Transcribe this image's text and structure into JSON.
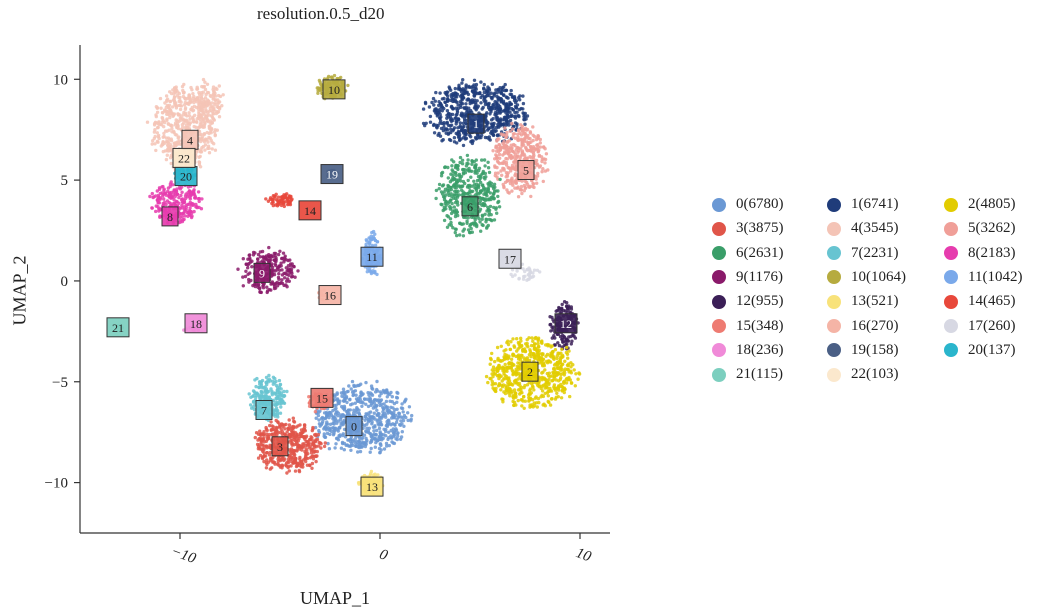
{
  "chart_data": {
    "type": "scatter",
    "title": "resolution.0.5_d20",
    "xlabel": "UMAP_1",
    "ylabel": "UMAP_2",
    "xlim": [
      -15,
      11.5
    ],
    "ylim": [
      -12.5,
      11.7
    ],
    "xticks": [
      -10,
      0,
      10
    ],
    "xtick_labels": [
      "−10",
      "0",
      "10"
    ],
    "yticks": [
      10,
      5,
      0,
      -5,
      -10
    ],
    "ytick_labels": [
      "10",
      "5",
      "0",
      "−5",
      "−10"
    ],
    "grid": false,
    "legend_position": "right",
    "clusters": [
      {
        "id": "0",
        "count": 6780,
        "legend": "0(6780)",
        "color": "#6a98d4",
        "label_pos": [
          -1.3,
          -7.2
        ]
      },
      {
        "id": "1",
        "count": 6741,
        "legend": "1(6741)",
        "color": "#1f3c7a",
        "label_pos": [
          4.8,
          7.8
        ]
      },
      {
        "id": "2",
        "count": 4805,
        "legend": "2(4805)",
        "color": "#e2cc00",
        "label_pos": [
          7.5,
          -4.5
        ]
      },
      {
        "id": "3",
        "count": 3875,
        "legend": "3(3875)",
        "color": "#e05549",
        "label_pos": [
          -5.0,
          -8.2
        ]
      },
      {
        "id": "4",
        "count": 3545,
        "legend": "4(3545)",
        "color": "#f4c4b6",
        "label_pos": [
          -9.5,
          7.0
        ]
      },
      {
        "id": "5",
        "count": 3262,
        "legend": "5(3262)",
        "color": "#f09f98",
        "label_pos": [
          7.3,
          5.5
        ]
      },
      {
        "id": "6",
        "count": 2631,
        "legend": "6(2631)",
        "color": "#3a9e69",
        "label_pos": [
          4.5,
          3.7
        ]
      },
      {
        "id": "7",
        "count": 2231,
        "legend": "7(2231)",
        "color": "#67c4d1",
        "label_pos": [
          -5.8,
          -6.4
        ]
      },
      {
        "id": "8",
        "count": 2183,
        "legend": "8(2183)",
        "color": "#e63cae",
        "label_pos": [
          -10.5,
          3.2
        ]
      },
      {
        "id": "9",
        "count": 1176,
        "legend": "9(1176)",
        "color": "#8a1a6a",
        "label_pos": [
          -5.9,
          0.4
        ]
      },
      {
        "id": "10",
        "count": 1064,
        "legend": "10(1064)",
        "color": "#b6ab3f",
        "label_pos": [
          -2.3,
          9.5
        ]
      },
      {
        "id": "11",
        "count": 1042,
        "legend": "11(1042)",
        "color": "#7aa9ea",
        "label_pos": [
          -0.4,
          1.2
        ]
      },
      {
        "id": "12",
        "count": 955,
        "legend": "12(955)",
        "color": "#3b1f57",
        "label_pos": [
          9.3,
          -2.1
        ]
      },
      {
        "id": "13",
        "count": 521,
        "legend": "13(521)",
        "color": "#f8e27a",
        "label_pos": [
          -0.4,
          -10.2
        ]
      },
      {
        "id": "14",
        "count": 465,
        "legend": "14(465)",
        "color": "#e8483b",
        "label_pos": [
          -3.5,
          3.5
        ]
      },
      {
        "id": "15",
        "count": 348,
        "legend": "15(348)",
        "color": "#ee7b72",
        "label_pos": [
          -2.9,
          -5.8
        ]
      },
      {
        "id": "16",
        "count": 270,
        "legend": "16(270)",
        "color": "#f5b4a6",
        "label_pos": [
          -2.5,
          -0.7
        ]
      },
      {
        "id": "17",
        "count": 260,
        "legend": "17(260)",
        "color": "#d7d8e3",
        "label_pos": [
          6.5,
          1.1
        ]
      },
      {
        "id": "18",
        "count": 236,
        "legend": "18(236)",
        "color": "#f08ad8",
        "label_pos": [
          -9.2,
          -2.1
        ]
      },
      {
        "id": "19",
        "count": 158,
        "legend": "19(158)",
        "color": "#4a5f85",
        "label_pos": [
          -2.4,
          5.3
        ]
      },
      {
        "id": "20",
        "count": 137,
        "legend": "20(137)",
        "color": "#2ab5cc",
        "label_pos": [
          -9.7,
          5.2
        ]
      },
      {
        "id": "21",
        "count": 115,
        "legend": "21(115)",
        "color": "#7ccfbf",
        "label_pos": [
          -13.1,
          -2.3
        ]
      },
      {
        "id": "22",
        "count": 103,
        "legend": "22(103)",
        "color": "#fbe8cd",
        "label_pos": [
          -9.8,
          6.1
        ]
      }
    ],
    "blobs": [
      {
        "c": "4",
        "x": -9.8,
        "y": 7.6,
        "rx": 1.7,
        "ry": 2.1,
        "n": 520
      },
      {
        "c": "4",
        "x": -8.6,
        "y": 8.9,
        "rx": 0.8,
        "ry": 1.1,
        "n": 120
      },
      {
        "c": "8",
        "x": -10.2,
        "y": 3.9,
        "rx": 1.3,
        "ry": 1.0,
        "n": 240
      },
      {
        "c": "20",
        "x": -9.8,
        "y": 5.3,
        "rx": 0.6,
        "ry": 0.3,
        "n": 40
      },
      {
        "c": "22",
        "x": -9.9,
        "y": 6.2,
        "rx": 0.5,
        "ry": 0.3,
        "n": 30
      },
      {
        "c": "10",
        "x": -2.4,
        "y": 9.6,
        "rx": 0.8,
        "ry": 0.6,
        "n": 110
      },
      {
        "c": "19",
        "x": -2.4,
        "y": 5.3,
        "rx": 0.3,
        "ry": 0.2,
        "n": 18
      },
      {
        "c": "14",
        "x": -5.0,
        "y": 4.0,
        "rx": 0.7,
        "ry": 0.35,
        "n": 70
      },
      {
        "c": "11",
        "x": -0.4,
        "y": 1.3,
        "rx": 0.45,
        "ry": 1.1,
        "n": 120
      },
      {
        "c": "9",
        "x": -5.6,
        "y": 0.5,
        "rx": 1.5,
        "ry": 1.1,
        "n": 230
      },
      {
        "c": "16",
        "x": -2.8,
        "y": -0.7,
        "rx": 0.3,
        "ry": 0.3,
        "n": 16
      },
      {
        "c": "18",
        "x": -9.4,
        "y": -2.4,
        "rx": 0.5,
        "ry": 0.15,
        "n": 14
      },
      {
        "c": "1",
        "x": 4.8,
        "y": 8.3,
        "rx": 2.6,
        "ry": 1.6,
        "n": 650
      },
      {
        "c": "5",
        "x": 7.0,
        "y": 6.0,
        "rx": 1.4,
        "ry": 1.8,
        "n": 360
      },
      {
        "c": "6",
        "x": 4.4,
        "y": 4.2,
        "rx": 1.6,
        "ry": 2.0,
        "n": 400
      },
      {
        "c": "17",
        "x": 7.2,
        "y": 0.4,
        "rx": 0.8,
        "ry": 0.4,
        "n": 40
      },
      {
        "c": "12",
        "x": 9.2,
        "y": -2.2,
        "rx": 0.7,
        "ry": 1.3,
        "n": 140
      },
      {
        "c": "2",
        "x": 7.6,
        "y": -4.6,
        "rx": 2.3,
        "ry": 1.8,
        "n": 620
      },
      {
        "c": "0",
        "x": -0.9,
        "y": -6.8,
        "rx": 2.4,
        "ry": 1.8,
        "n": 620
      },
      {
        "c": "7",
        "x": -5.6,
        "y": -5.8,
        "rx": 1.0,
        "ry": 1.1,
        "n": 200
      },
      {
        "c": "3",
        "x": -4.6,
        "y": -8.2,
        "rx": 1.8,
        "ry": 1.3,
        "n": 440
      },
      {
        "c": "15",
        "x": -3.1,
        "y": -6.0,
        "rx": 0.6,
        "ry": 0.5,
        "n": 60
      },
      {
        "c": "13",
        "x": -0.5,
        "y": -10.0,
        "rx": 0.6,
        "ry": 0.55,
        "n": 80
      },
      {
        "c": "21",
        "x": -13.1,
        "y": -2.3,
        "rx": 0.2,
        "ry": 0.15,
        "n": 8
      }
    ]
  }
}
